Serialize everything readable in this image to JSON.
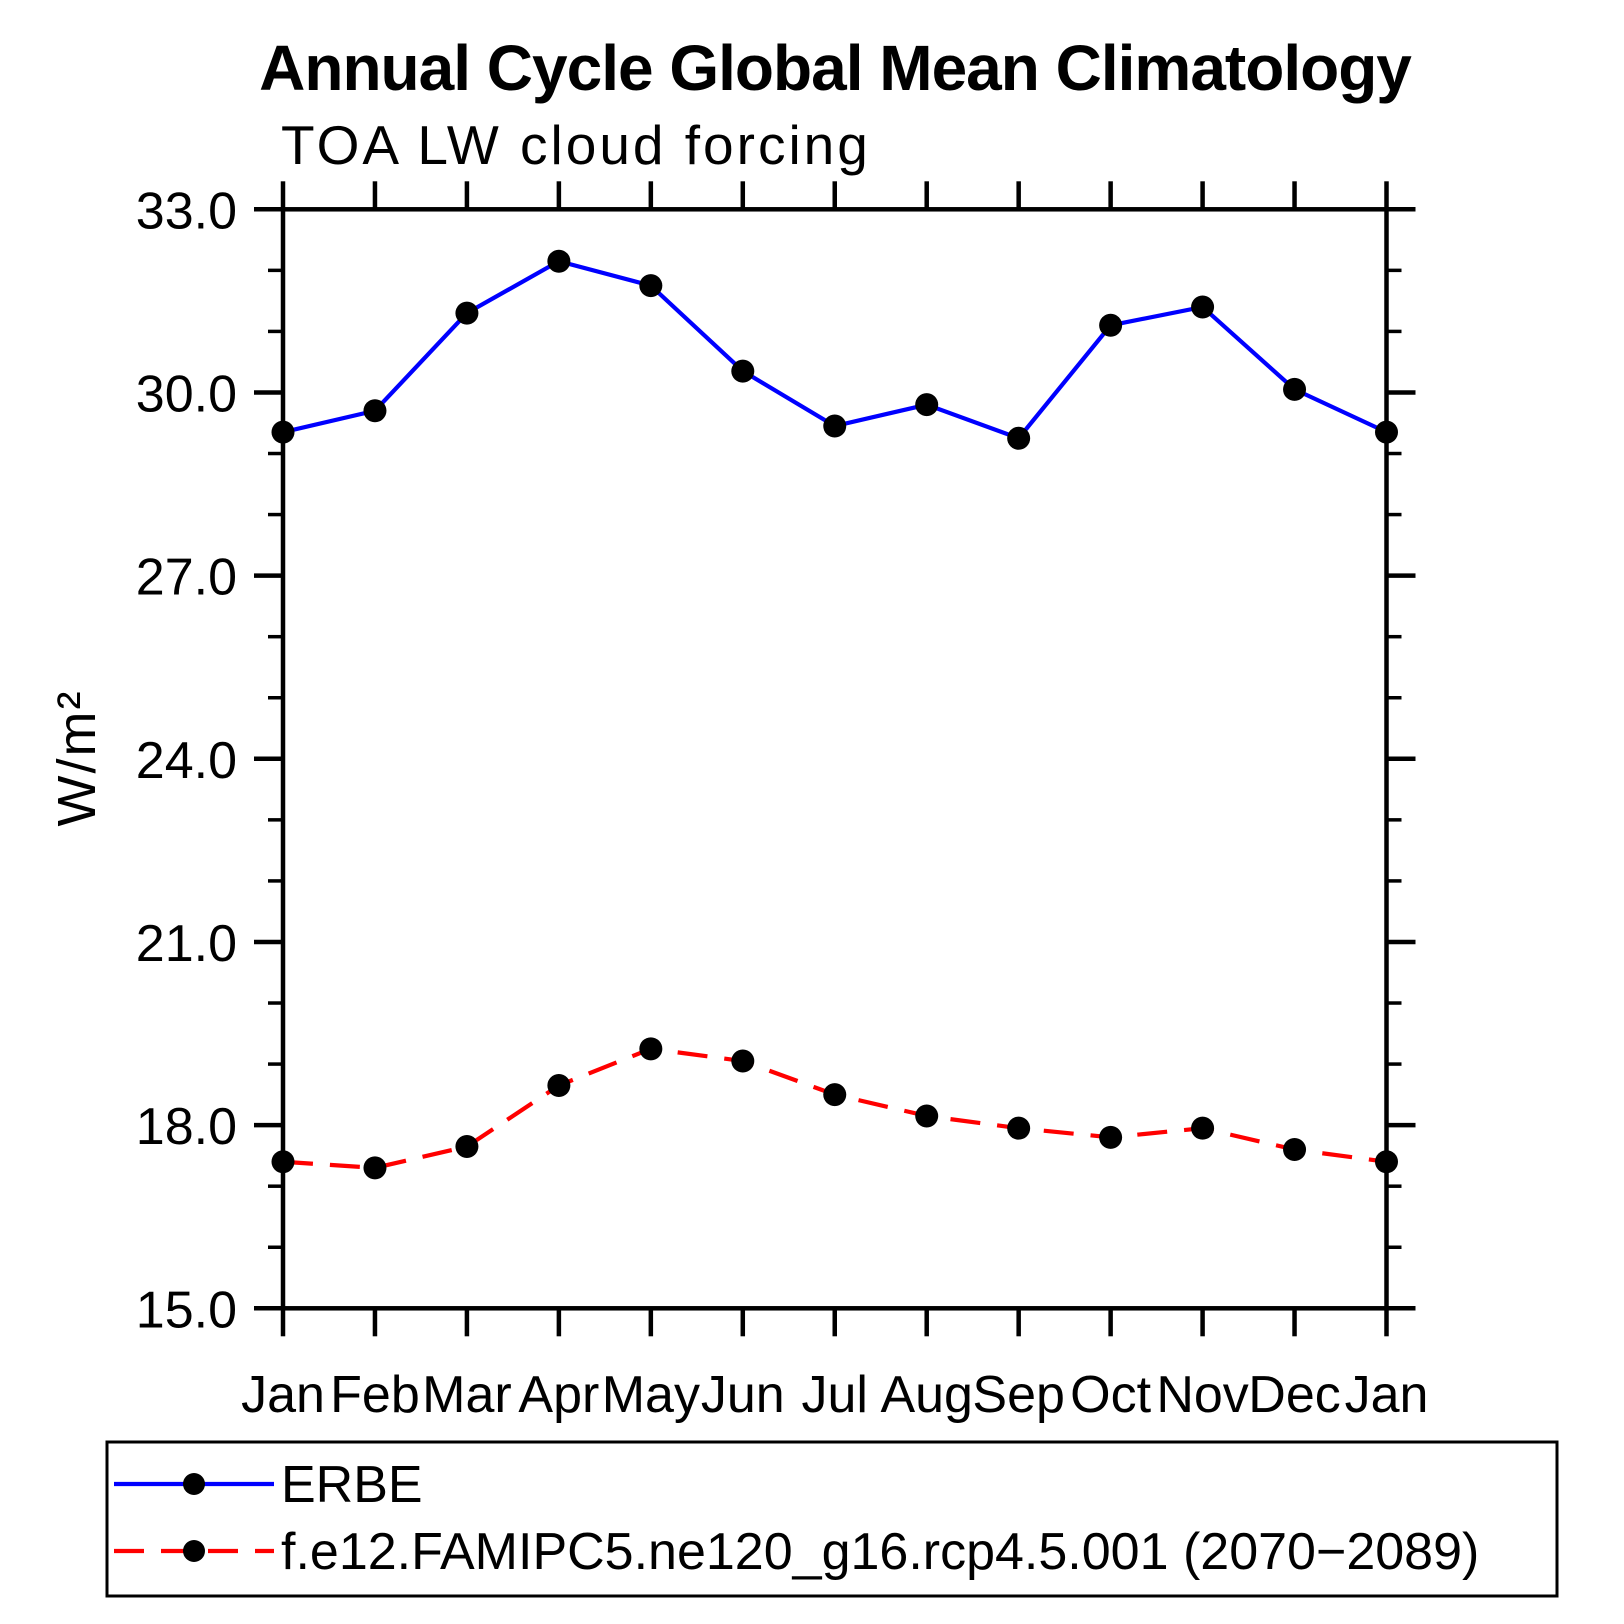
{
  "chart_data": {
    "type": "line",
    "title": "Annual Cycle Global Mean Climatology",
    "subtitle": "TOA LW cloud forcing",
    "ylabel": "W/m²",
    "xlabel": "",
    "categories": [
      "Jan",
      "Feb",
      "Mar",
      "Apr",
      "May",
      "Jun",
      "Jul",
      "Aug",
      "Sep",
      "Oct",
      "Nov",
      "Dec",
      "Jan"
    ],
    "series": [
      {
        "name": "ERBE",
        "color": "#0000ff",
        "line_style": "solid",
        "marker": "filled-circle",
        "marker_color": "#000000",
        "values": [
          29.35,
          29.7,
          31.3,
          32.15,
          31.75,
          30.35,
          29.45,
          29.8,
          29.25,
          31.1,
          31.4,
          30.05,
          29.35
        ]
      },
      {
        "name": "f.e12.FAMIPC5.ne120_g16.rcp4.5.001 (2070−2089)",
        "color": "#ff0000",
        "line_style": "dashed",
        "marker": "filled-circle",
        "marker_color": "#000000",
        "values": [
          17.4,
          17.3,
          17.65,
          18.65,
          19.25,
          19.05,
          18.5,
          18.15,
          17.95,
          17.8,
          17.95,
          17.6,
          17.4
        ]
      }
    ],
    "ylim": [
      15.0,
      33.0
    ],
    "yticks": [
      15.0,
      18.0,
      21.0,
      24.0,
      27.0,
      30.0,
      33.0
    ],
    "y_minor_step": 1.0,
    "grid": false,
    "legend_position": "bottom",
    "axis_color": "#000000"
  }
}
